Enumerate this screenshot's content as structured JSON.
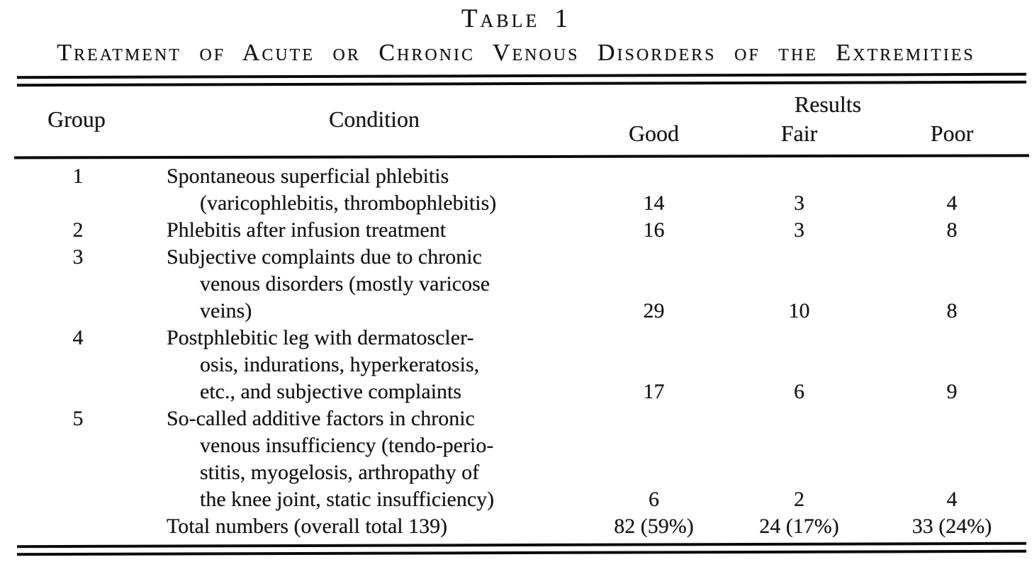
{
  "colors": {
    "ink": "#141414",
    "paper": "#ffffff"
  },
  "title": "Table 1",
  "subtitle": "Treatment of Acute or Chronic Venous Disorders of the Extremities",
  "header": {
    "group": "Group",
    "condition": "Condition",
    "results": "Results",
    "good": "Good",
    "fair": "Fair",
    "poor": "Poor"
  },
  "rows": [
    {
      "group": "1",
      "condition": "Spontaneous superficial phlebitis (varicophlebitis, thrombophlebitis)",
      "lines": [
        "Spontaneous superficial phlebitis",
        "(varicophlebitis, thrombophlebitis)"
      ],
      "good": "14",
      "fair": "3",
      "poor": "4"
    },
    {
      "group": "2",
      "condition": "Phlebitis after infusion treatment",
      "lines": [
        "Phlebitis after infusion treatment"
      ],
      "good": "16",
      "fair": "3",
      "poor": "8"
    },
    {
      "group": "3",
      "condition": "Subjective complaints due to chronic venous disorders (mostly varicose veins)",
      "lines": [
        "Subjective complaints due to chronic",
        "venous disorders (mostly varicose",
        "veins)"
      ],
      "good": "29",
      "fair": "10",
      "poor": "8"
    },
    {
      "group": "4",
      "condition": "Postphlebitic leg with dermatosclerosis, indurations, hyperkeratosis, etc., and subjective complaints",
      "lines": [
        "Postphlebitic leg with dermatoscler-",
        "osis, indurations, hyperkeratosis,",
        "etc., and subjective complaints"
      ],
      "good": "17",
      "fair": "6",
      "poor": "9"
    },
    {
      "group": "5",
      "condition": "So-called additive factors in chronic venous insufficiency (tendo-periostitis, myogelosis, arthropathy of the knee joint, static insufficiency)",
      "lines": [
        "So-called additive factors in chronic",
        "venous insufficiency (tendo-perio-",
        "stitis, myogelosis, arthropathy of",
        "the knee joint, static insufficiency)"
      ],
      "good": "6",
      "fair": "2",
      "poor": "4"
    }
  ],
  "total": {
    "label": "Total numbers (overall total 139)",
    "good": "82 (59%)",
    "fair": "24 (17%)",
    "poor": "33 (24%)"
  }
}
